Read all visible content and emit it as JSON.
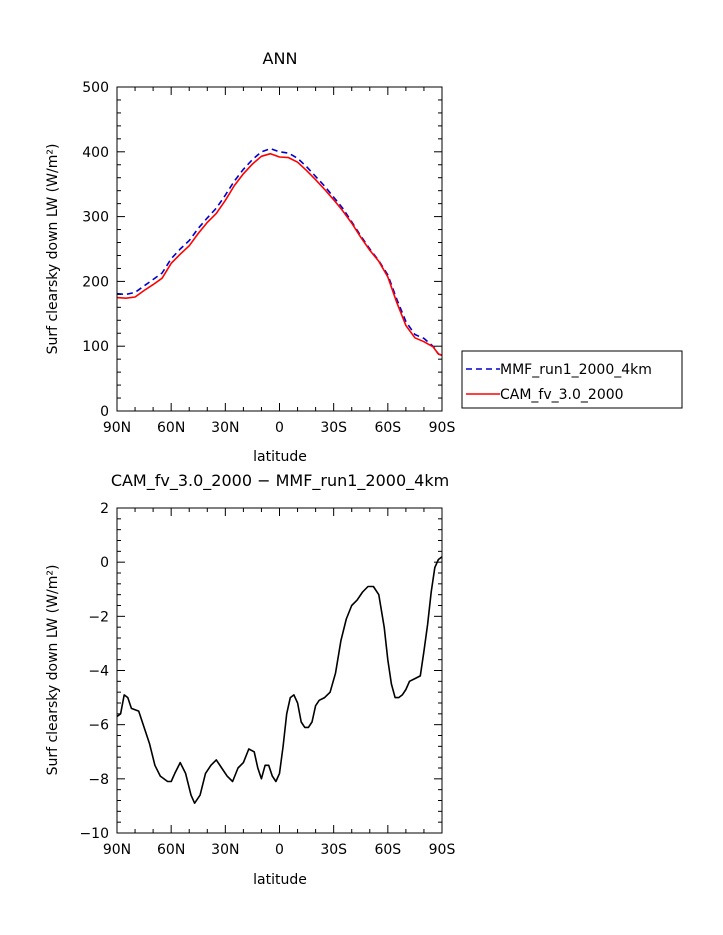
{
  "chart_data": [
    {
      "type": "line",
      "title": "ANN",
      "xlabel": "latitude",
      "ylabel": "Surf clearsky down LW (W/m²)",
      "xlim": [
        90,
        -90
      ],
      "ylim": [
        0,
        500
      ],
      "x_ticks": [
        90,
        60,
        30,
        0,
        -30,
        -60,
        -90
      ],
      "x_tick_labels": [
        "90N",
        "60N",
        "30N",
        "0",
        "30S",
        "60S",
        "90S"
      ],
      "y_ticks": [
        0,
        100,
        200,
        300,
        400,
        500
      ],
      "y_tick_labels": [
        "0",
        "100",
        "200",
        "300",
        "400",
        "500"
      ],
      "legend_position": "right",
      "series": [
        {
          "name": "MMF_run1_2000_4km",
          "color": "#0000cc",
          "dash": "dashed",
          "x": [
            90,
            85,
            80,
            75,
            70,
            65,
            60,
            55,
            50,
            45,
            40,
            35,
            30,
            25,
            20,
            15,
            10,
            5,
            0,
            -5,
            -10,
            -15,
            -20,
            -25,
            -30,
            -35,
            -40,
            -45,
            -50,
            -55,
            -60,
            -65,
            -70,
            -75,
            -80,
            -85,
            -88,
            -90
          ],
          "y": [
            181,
            180,
            183,
            193,
            203,
            213,
            235,
            250,
            263,
            282,
            298,
            313,
            333,
            355,
            373,
            388,
            400,
            405,
            400,
            398,
            390,
            377,
            362,
            347,
            330,
            313,
            292,
            270,
            250,
            232,
            210,
            172,
            138,
            118,
            112,
            100,
            88,
            86
          ]
        },
        {
          "name": "CAM_fv_3.0_2000",
          "color": "#ff0000",
          "dash": "solid",
          "x": [
            90,
            85,
            80,
            75,
            70,
            65,
            60,
            55,
            50,
            45,
            40,
            35,
            30,
            25,
            20,
            15,
            10,
            5,
            0,
            -5,
            -10,
            -15,
            -20,
            -25,
            -30,
            -35,
            -40,
            -45,
            -50,
            -55,
            -60,
            -65,
            -70,
            -75,
            -80,
            -85,
            -88,
            -90
          ],
          "y": [
            175,
            174,
            176,
            186,
            195,
            205,
            228,
            242,
            255,
            274,
            291,
            305,
            325,
            348,
            366,
            381,
            393,
            397,
            392,
            391,
            384,
            371,
            357,
            342,
            326,
            309,
            290,
            268,
            248,
            231,
            207,
            167,
            132,
            113,
            107,
            99,
            88,
            86
          ]
        }
      ]
    },
    {
      "type": "line",
      "title": "CAM_fv_3.0_2000 − MMF_run1_2000_4km",
      "xlabel": "latitude",
      "ylabel": "Surf clearsky down LW (W/m²)",
      "xlim": [
        90,
        -90
      ],
      "ylim": [
        -10,
        2
      ],
      "x_ticks": [
        90,
        60,
        30,
        0,
        -30,
        -60,
        -90
      ],
      "x_tick_labels": [
        "90N",
        "60N",
        "30N",
        "0",
        "30S",
        "60S",
        "90S"
      ],
      "y_ticks": [
        -10,
        -8,
        -6,
        -4,
        -2,
        0,
        2
      ],
      "y_tick_labels": [
        "−10",
        "−8",
        "−6",
        "−4",
        "−2",
        "0",
        "2"
      ],
      "series": [
        {
          "color": "#000000",
          "dash": "solid",
          "x": [
            90,
            88,
            86,
            84,
            82,
            78,
            75,
            72,
            69,
            66,
            62,
            60,
            58,
            55,
            52,
            49,
            47,
            44,
            41,
            38,
            35,
            32,
            29,
            26,
            23,
            20,
            17,
            14,
            12,
            10,
            8,
            6,
            4,
            2,
            0,
            -2,
            -4,
            -6,
            -8,
            -10,
            -12,
            -14,
            -16,
            -18,
            -20,
            -22,
            -25,
            -28,
            -31,
            -34,
            -37,
            -40,
            -43,
            -46,
            -49,
            -52,
            -55,
            -58,
            -60,
            -62,
            -64,
            -66,
            -68,
            -70,
            -72,
            -75,
            -78,
            -80,
            -82,
            -84,
            -86,
            -88,
            -90
          ],
          "y": [
            -5.7,
            -5.6,
            -4.9,
            -5.0,
            -5.4,
            -5.5,
            -6.1,
            -6.7,
            -7.5,
            -7.9,
            -8.1,
            -8.1,
            -7.8,
            -7.4,
            -7.8,
            -8.6,
            -8.9,
            -8.6,
            -7.8,
            -7.5,
            -7.3,
            -7.6,
            -7.9,
            -8.1,
            -7.6,
            -7.4,
            -6.9,
            -7.0,
            -7.6,
            -8.0,
            -7.5,
            -7.5,
            -7.9,
            -8.1,
            -7.8,
            -6.8,
            -5.6,
            -5.0,
            -4.9,
            -5.2,
            -5.9,
            -6.1,
            -6.1,
            -5.9,
            -5.3,
            -5.1,
            -5.0,
            -4.8,
            -4.1,
            -2.9,
            -2.1,
            -1.6,
            -1.4,
            -1.1,
            -0.9,
            -0.9,
            -1.2,
            -2.4,
            -3.6,
            -4.5,
            -5.0,
            -5.0,
            -4.9,
            -4.7,
            -4.4,
            -4.3,
            -4.2,
            -3.3,
            -2.3,
            -1.1,
            -0.2,
            0.1,
            0.2
          ]
        }
      ]
    }
  ]
}
